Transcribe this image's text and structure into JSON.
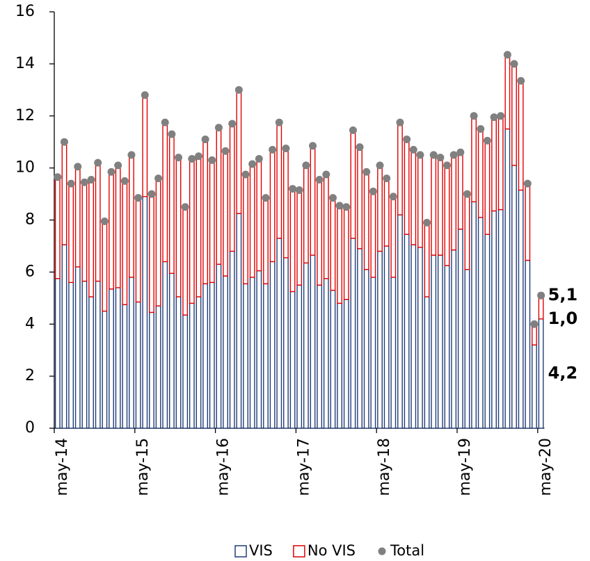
{
  "chart_data": {
    "type": "stacked_bar",
    "categories": [
      "may-14",
      null,
      null,
      null,
      null,
      null,
      null,
      null,
      null,
      null,
      null,
      null,
      "may-15",
      null,
      null,
      null,
      null,
      null,
      null,
      null,
      null,
      null,
      null,
      null,
      "may-16",
      null,
      null,
      null,
      null,
      null,
      null,
      null,
      null,
      null,
      null,
      null,
      "may-17",
      null,
      null,
      null,
      null,
      null,
      null,
      null,
      null,
      null,
      null,
      null,
      "may-18",
      null,
      null,
      null,
      null,
      null,
      null,
      null,
      null,
      null,
      null,
      null,
      "may-19",
      null,
      null,
      null,
      null,
      null,
      null,
      null,
      null,
      null,
      null,
      null,
      "may-20"
    ],
    "series": [
      {
        "name": "VIS",
        "color": "#1f3c78",
        "values": [
          5.75,
          7.05,
          5.6,
          6.2,
          5.65,
          5.05,
          5.65,
          4.5,
          5.35,
          5.4,
          4.75,
          5.8,
          4.85,
          8.9,
          4.45,
          4.7,
          6.4,
          5.95,
          5.05,
          4.35,
          4.8,
          5.05,
          5.55,
          5.6,
          6.3,
          5.85,
          6.8,
          8.25,
          5.55,
          5.8,
          6.05,
          5.55,
          6.4,
          7.3,
          6.55,
          5.25,
          5.5,
          6.35,
          6.65,
          5.5,
          5.75,
          5.3,
          4.8,
          4.95,
          7.3,
          6.9,
          6.1,
          5.8,
          6.8,
          7.0,
          5.8,
          8.2,
          7.45,
          7.05,
          6.95,
          5.05,
          6.65,
          6.65,
          6.25,
          6.85,
          7.65,
          6.1,
          8.7,
          8.1,
          7.45,
          8.35,
          8.4,
          11.5,
          10.1,
          9.15,
          6.45,
          3.2,
          4.2
        ],
        "value_labels": [
          null,
          null,
          null,
          null,
          null,
          null,
          null,
          null,
          null,
          null,
          null,
          null,
          null,
          null,
          null,
          null,
          null,
          null,
          null,
          null,
          null,
          null,
          null,
          null,
          null,
          null,
          null,
          null,
          null,
          null,
          null,
          null,
          null,
          null,
          null,
          null,
          null,
          null,
          null,
          null,
          null,
          null,
          null,
          null,
          null,
          null,
          null,
          null,
          null,
          null,
          null,
          null,
          null,
          null,
          null,
          null,
          null,
          null,
          null,
          null,
          null,
          null,
          null,
          null,
          null,
          null,
          null,
          null,
          null,
          null,
          null,
          null,
          "4,2"
        ]
      },
      {
        "name": "No VIS",
        "color": "#e00000",
        "values": [
          3.9,
          3.95,
          3.8,
          3.85,
          3.8,
          4.5,
          4.55,
          3.45,
          4.5,
          4.7,
          4.75,
          4.7,
          4.0,
          3.9,
          4.55,
          4.9,
          5.35,
          5.35,
          5.35,
          4.15,
          5.55,
          5.4,
          5.55,
          4.7,
          5.25,
          4.8,
          4.9,
          4.75,
          4.2,
          4.35,
          4.3,
          3.3,
          4.3,
          4.45,
          4.2,
          3.95,
          3.65,
          3.75,
          4.2,
          4.05,
          4.0,
          3.55,
          3.75,
          3.55,
          4.15,
          3.9,
          3.75,
          3.3,
          3.3,
          2.6,
          3.1,
          3.55,
          3.65,
          3.65,
          3.55,
          2.85,
          3.85,
          3.75,
          3.85,
          3.65,
          2.95,
          2.9,
          3.3,
          3.4,
          3.6,
          3.6,
          3.6,
          2.85,
          3.9,
          4.2,
          2.95,
          0.8,
          1.0
        ],
        "value_labels": [
          null,
          null,
          null,
          null,
          null,
          null,
          null,
          null,
          null,
          null,
          null,
          null,
          null,
          null,
          null,
          null,
          null,
          null,
          null,
          null,
          null,
          null,
          null,
          null,
          null,
          null,
          null,
          null,
          null,
          null,
          null,
          null,
          null,
          null,
          null,
          null,
          null,
          null,
          null,
          null,
          null,
          null,
          null,
          null,
          null,
          null,
          null,
          null,
          null,
          null,
          null,
          null,
          null,
          null,
          null,
          null,
          null,
          null,
          null,
          null,
          null,
          null,
          null,
          null,
          null,
          null,
          null,
          null,
          null,
          null,
          null,
          null,
          "1,0"
        ]
      },
      {
        "name": "Total",
        "color": "#808080",
        "marker": "dot",
        "values": [
          9.65,
          11.0,
          9.4,
          10.05,
          9.45,
          9.55,
          10.2,
          7.95,
          9.85,
          10.1,
          9.5,
          10.5,
          8.85,
          12.8,
          9.0,
          9.6,
          11.75,
          11.3,
          10.4,
          8.5,
          10.35,
          10.45,
          11.1,
          10.3,
          11.55,
          10.65,
          11.7,
          13.0,
          9.75,
          10.15,
          10.35,
          8.85,
          10.7,
          11.75,
          10.75,
          9.2,
          9.15,
          10.1,
          10.85,
          9.55,
          9.75,
          8.85,
          8.55,
          8.5,
          11.45,
          10.8,
          9.85,
          9.1,
          10.1,
          9.6,
          8.9,
          11.75,
          11.1,
          10.7,
          10.5,
          7.9,
          10.5,
          10.4,
          10.1,
          10.5,
          10.6,
          9.0,
          12.0,
          11.5,
          11.05,
          11.95,
          12.0,
          14.35,
          14.0,
          13.35,
          9.4,
          4.0,
          5.1
        ],
        "value_labels": [
          null,
          null,
          null,
          null,
          null,
          null,
          null,
          null,
          null,
          null,
          null,
          null,
          null,
          null,
          null,
          null,
          null,
          null,
          null,
          null,
          null,
          null,
          null,
          null,
          null,
          null,
          null,
          null,
          null,
          null,
          null,
          null,
          null,
          null,
          null,
          null,
          null,
          null,
          null,
          null,
          null,
          null,
          null,
          null,
          null,
          null,
          null,
          null,
          null,
          null,
          null,
          null,
          null,
          null,
          null,
          null,
          null,
          null,
          null,
          null,
          null,
          null,
          null,
          null,
          null,
          null,
          null,
          null,
          null,
          null,
          null,
          null,
          "5,1"
        ]
      }
    ],
    "ylim": [
      0,
      16
    ],
    "yticks": [
      0,
      2,
      4,
      6,
      8,
      10,
      12,
      14,
      16
    ],
    "grid": false,
    "legend": "bottom"
  }
}
